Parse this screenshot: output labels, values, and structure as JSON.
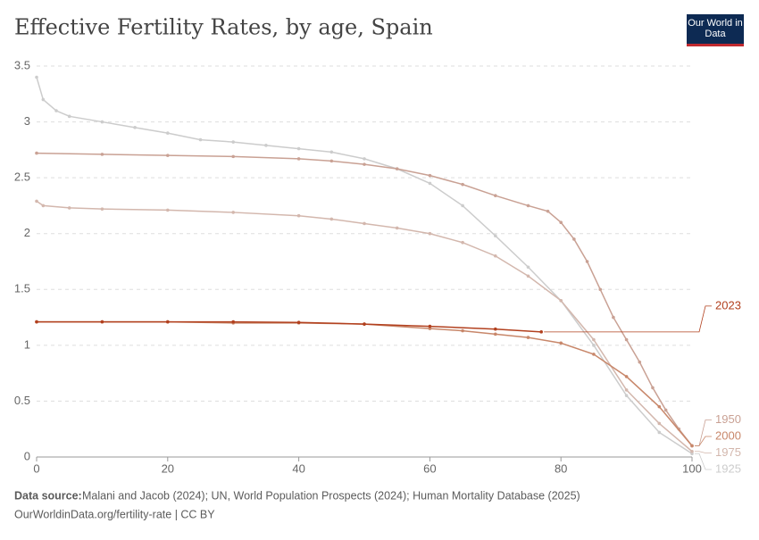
{
  "chart_data": {
    "type": "line",
    "title": "Effective Fertility Rates, by age, Spain",
    "logo": "Our World in Data",
    "source_label": "Data source:",
    "source": "Malani and Jacob (2024); UN, World Population Prospects (2024); Human Mortality Database (2025)",
    "footer": "OurWorldinData.org/fertility-rate | CC BY",
    "xlim": [
      0,
      100
    ],
    "ylim": [
      0,
      3.5
    ],
    "xticks": [
      0,
      20,
      40,
      60,
      80,
      100
    ],
    "yticks": [
      0,
      0.5,
      1,
      1.5,
      2,
      2.5,
      3,
      3.5
    ],
    "grid": true,
    "series": [
      {
        "name": "1925",
        "color": "#cccccc",
        "x": [
          0,
          1,
          3,
          5,
          10,
          15,
          20,
          25,
          30,
          35,
          40,
          45,
          50,
          55,
          60,
          65,
          70,
          75,
          80,
          85,
          90,
          95,
          100
        ],
        "values": [
          3.4,
          3.2,
          3.1,
          3.05,
          3.0,
          2.95,
          2.9,
          2.84,
          2.82,
          2.79,
          2.76,
          2.73,
          2.67,
          2.58,
          2.45,
          2.25,
          1.98,
          1.7,
          1.4,
          1.0,
          0.55,
          0.22,
          0.03
        ]
      },
      {
        "name": "1950",
        "color": "#c9a194",
        "x": [
          0,
          10,
          20,
          30,
          40,
          45,
          50,
          55,
          60,
          65,
          70,
          75,
          78,
          80,
          82,
          84,
          86,
          88,
          90,
          92,
          94,
          96,
          98,
          100
        ],
        "values": [
          2.72,
          2.71,
          2.7,
          2.69,
          2.67,
          2.65,
          2.62,
          2.58,
          2.52,
          2.44,
          2.34,
          2.25,
          2.2,
          2.1,
          1.95,
          1.75,
          1.5,
          1.25,
          1.05,
          0.85,
          0.62,
          0.42,
          0.25,
          0.1
        ]
      },
      {
        "name": "1975",
        "color": "#d3b7ad",
        "x": [
          0,
          1,
          5,
          10,
          20,
          30,
          40,
          45,
          50,
          55,
          60,
          65,
          70,
          75,
          80,
          85,
          90,
          95,
          100
        ],
        "values": [
          2.29,
          2.25,
          2.23,
          2.22,
          2.21,
          2.19,
          2.16,
          2.13,
          2.09,
          2.05,
          2.0,
          1.92,
          1.8,
          1.62,
          1.4,
          1.05,
          0.6,
          0.3,
          0.05
        ]
      },
      {
        "name": "2000",
        "color": "#c8876a",
        "x": [
          0,
          10,
          20,
          30,
          40,
          50,
          60,
          65,
          70,
          75,
          80,
          85,
          90,
          95,
          100
        ],
        "values": [
          1.21,
          1.21,
          1.21,
          1.2,
          1.2,
          1.19,
          1.15,
          1.13,
          1.1,
          1.07,
          1.02,
          0.92,
          0.72,
          0.45,
          0.1
        ]
      },
      {
        "name": "2023",
        "color": "#b2401e",
        "x": [
          0,
          10,
          20,
          30,
          40,
          50,
          60,
          70,
          77
        ],
        "values": [
          1.21,
          1.21,
          1.21,
          1.21,
          1.205,
          1.19,
          1.17,
          1.145,
          1.12
        ]
      }
    ]
  }
}
